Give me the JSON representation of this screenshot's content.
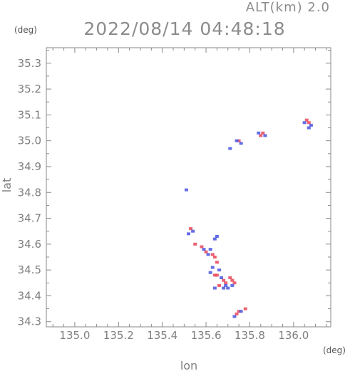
{
  "header": {
    "altitude_label": "ALT(km) 2.0",
    "timestamp": "2022/08/14 04:48:18",
    "y_unit": "(deg)",
    "x_unit": "(deg)"
  },
  "colors": {
    "axis": "#8a8a8a",
    "text": "#7f7f7f",
    "positive": "#e8475a",
    "negative": "#4a55e0"
  },
  "chart_data": {
    "type": "scatter",
    "title": "2022/08/14 04:48:18",
    "subtitle": "ALT(km) 2.0",
    "xlabel": "lon",
    "ylabel": "lat",
    "x_unit": "(deg)",
    "y_unit": "(deg)",
    "xlim": [
      134.87,
      136.17
    ],
    "ylim": [
      34.28,
      35.36
    ],
    "xticks": [
      "135.0",
      "135.2",
      "135.4",
      "135.6",
      "135.8",
      "136.0"
    ],
    "yticks": [
      "34.3",
      "34.4",
      "34.5",
      "34.6",
      "34.7",
      "34.8",
      "34.9",
      "35.0",
      "35.1",
      "35.2",
      "35.3"
    ],
    "grid": false,
    "series": [
      {
        "color": "#e8475a",
        "points": [
          [
            136.06,
            35.08
          ],
          [
            136.07,
            35.07
          ],
          [
            135.86,
            35.03
          ],
          [
            135.85,
            35.02
          ],
          [
            135.75,
            35.0
          ],
          [
            135.53,
            34.66
          ],
          [
            135.55,
            34.6
          ],
          [
            135.58,
            34.59
          ],
          [
            135.6,
            34.57
          ],
          [
            135.63,
            34.56
          ],
          [
            135.64,
            34.55
          ],
          [
            135.65,
            34.53
          ],
          [
            135.64,
            34.48
          ],
          [
            135.65,
            34.48
          ],
          [
            135.68,
            34.46
          ],
          [
            135.69,
            34.45
          ],
          [
            135.71,
            34.47
          ],
          [
            135.72,
            34.46
          ],
          [
            135.73,
            34.45
          ],
          [
            135.66,
            34.44
          ],
          [
            135.74,
            34.33
          ],
          [
            135.75,
            34.34
          ],
          [
            135.78,
            34.35
          ]
        ]
      },
      {
        "color": "#4a55e0",
        "points": [
          [
            136.05,
            35.07
          ],
          [
            136.08,
            35.06
          ],
          [
            136.07,
            35.05
          ],
          [
            135.84,
            35.03
          ],
          [
            135.87,
            35.02
          ],
          [
            135.76,
            34.99
          ],
          [
            135.71,
            34.97
          ],
          [
            135.74,
            35.0
          ],
          [
            135.51,
            34.81
          ],
          [
            135.52,
            34.64
          ],
          [
            135.54,
            34.65
          ],
          [
            135.59,
            34.58
          ],
          [
            135.61,
            34.56
          ],
          [
            135.62,
            34.58
          ],
          [
            135.64,
            34.62
          ],
          [
            135.65,
            34.63
          ],
          [
            135.63,
            34.51
          ],
          [
            135.66,
            34.5
          ],
          [
            135.62,
            34.49
          ],
          [
            135.67,
            34.47
          ],
          [
            135.69,
            34.44
          ],
          [
            135.7,
            34.43
          ],
          [
            135.72,
            34.44
          ],
          [
            135.68,
            34.43
          ],
          [
            135.64,
            34.43
          ],
          [
            135.73,
            34.32
          ],
          [
            135.76,
            34.34
          ]
        ]
      }
    ]
  }
}
